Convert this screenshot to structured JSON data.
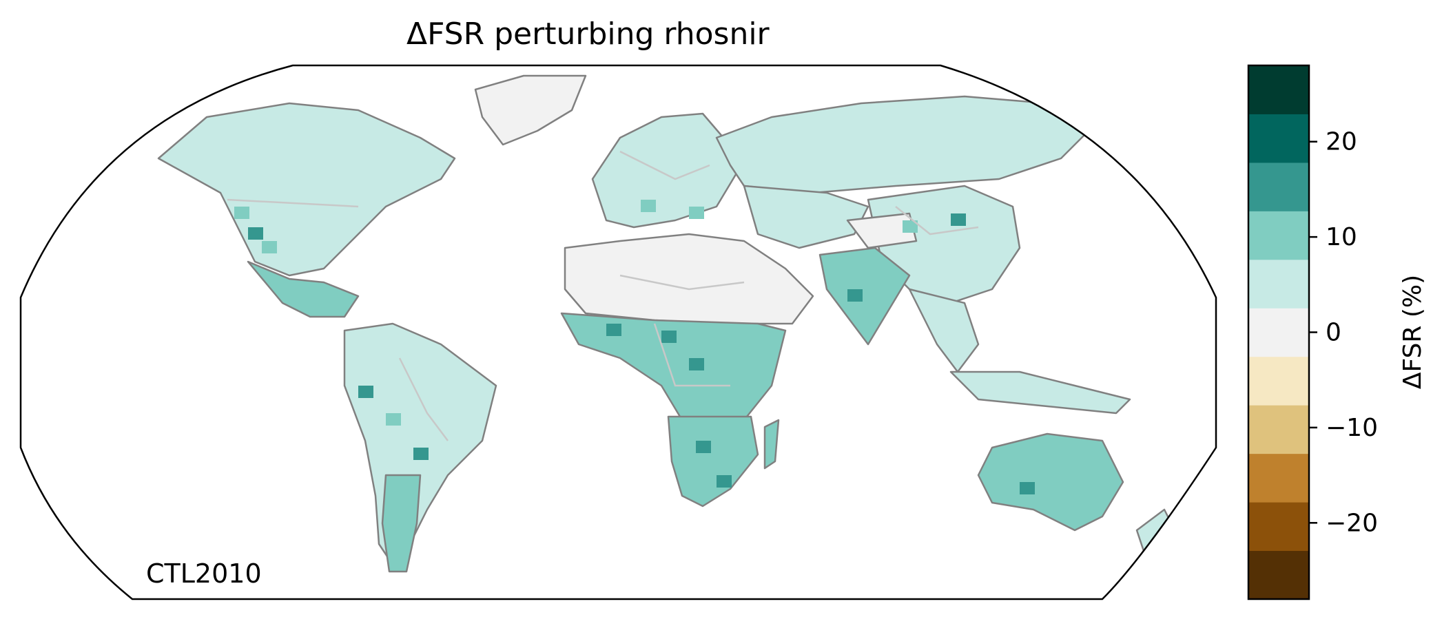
{
  "title": "ΔFSR perturbing rhosnir",
  "run_label": "CTL2010",
  "colorbar": {
    "label": "ΔFSR (%)",
    "vmin": -28,
    "vmax": 28,
    "bin_width": 5.6,
    "colors": [
      "#543005",
      "#8c510a",
      "#bf812d",
      "#dfc27d",
      "#f6e8c3",
      "#f2f2f2",
      "#c7eae5",
      "#80cdc1",
      "#35978f",
      "#01665e",
      "#003c30"
    ],
    "ticks": [
      {
        "value": 20,
        "label": "20"
      },
      {
        "value": 10,
        "label": "10"
      },
      {
        "value": 0,
        "label": "0"
      },
      {
        "value": -10,
        "label": "−10"
      },
      {
        "value": -20,
        "label": "−20"
      }
    ]
  },
  "map": {
    "projection": "Robinson",
    "ocean_color": "#ffffff",
    "coastline_color": "#808080",
    "border_color": "#c8c8c8",
    "regions": [
      {
        "name": "North America",
        "class": 6
      },
      {
        "name": "Greenland",
        "class": 5
      },
      {
        "name": "Central America",
        "class": 7
      },
      {
        "name": "South America",
        "class": 6
      },
      {
        "name": "Patagonia",
        "class": 7
      },
      {
        "name": "Sahara and Arabia",
        "class": 5
      },
      {
        "name": "Sahel and Central Africa",
        "class": 7
      },
      {
        "name": "Southern Africa",
        "class": 7
      },
      {
        "name": "Madagascar",
        "class": 7
      },
      {
        "name": "Europe",
        "class": 6
      },
      {
        "name": "Russia and Siberia",
        "class": 6
      },
      {
        "name": "Central Asia",
        "class": 6
      },
      {
        "name": "China",
        "class": 6
      },
      {
        "name": "Tibet",
        "class": 5
      },
      {
        "name": "India",
        "class": 7
      },
      {
        "name": "Southeast Asia",
        "class": 6
      },
      {
        "name": "Indonesia",
        "class": 6
      },
      {
        "name": "Australia",
        "class": 7
      },
      {
        "name": "New Zealand",
        "class": 6
      }
    ]
  }
}
